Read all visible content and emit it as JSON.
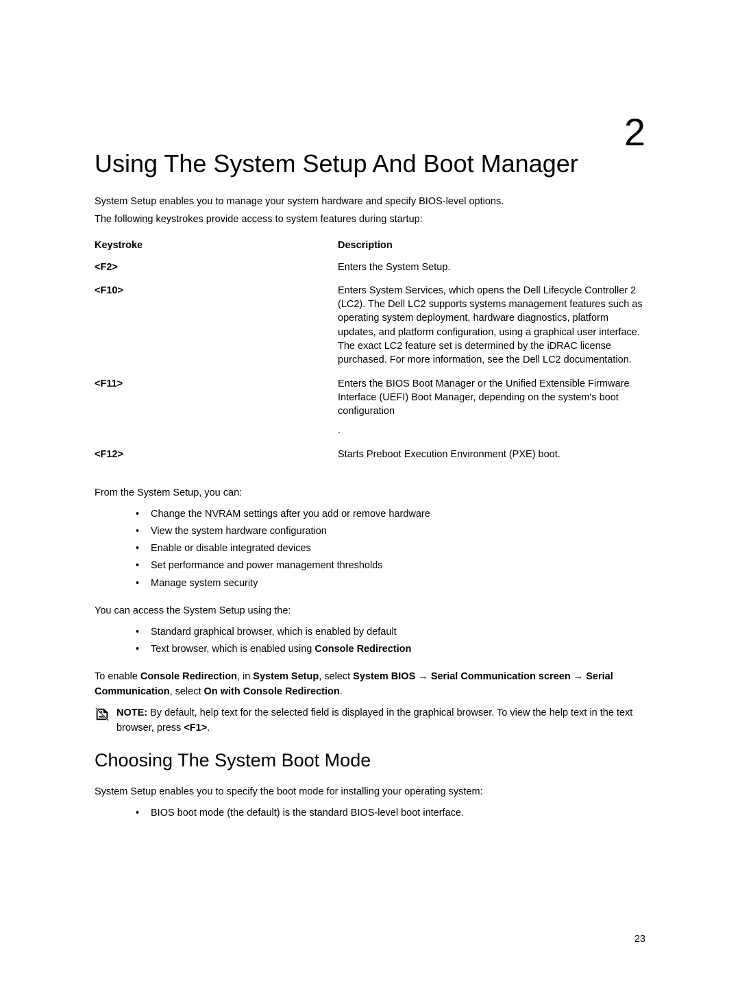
{
  "chapter": {
    "number": "2",
    "title": "Using The System Setup And Boot Manager"
  },
  "intro": {
    "line1": "System Setup enables you to manage your system hardware and specify BIOS-level options.",
    "line2": "The following keystrokes provide access to system features during startup:"
  },
  "table": {
    "header_key": "Keystroke",
    "header_desc": "Description",
    "rows": [
      {
        "key": "<F2>",
        "desc": "Enters the System Setup."
      },
      {
        "key": "<F10>",
        "desc": "Enters System Services, which opens the Dell Lifecycle Controller 2 (LC2). The Dell LC2 supports systems management features such as operating system deployment, hardware diagnostics, platform updates, and platform configuration, using a graphical user interface. The exact LC2 feature set is determined by the iDRAC license purchased. For more information, see the Dell LC2 documentation."
      },
      {
        "key": "<F11>",
        "desc": "Enters the BIOS Boot Manager or the Unified Extensible Firmware Interface (UEFI) Boot Manager, depending on the system's boot configuration",
        "trailing": "."
      },
      {
        "key": "<F12>",
        "desc": "Starts Preboot Execution Environment (PXE) boot."
      }
    ]
  },
  "setup_intro": "From the System Setup, you can:",
  "setup_list": [
    "Change the NVRAM settings after you add or remove hardware",
    "View the system hardware configuration",
    "Enable or disable integrated devices",
    "Set performance and power management thresholds",
    "Manage system security"
  ],
  "access_intro": "You can access the System Setup using the:",
  "access_list": [
    {
      "text": "Standard graphical browser, which is enabled by default"
    },
    {
      "prefix": "Text browser, which is enabled using ",
      "bold": "Console Redirection"
    }
  ],
  "enable_para": {
    "parts": [
      {
        "t": "To enable "
      },
      {
        "t": "Console Redirection",
        "b": true
      },
      {
        "t": ", in "
      },
      {
        "t": "System Setup",
        "b": true
      },
      {
        "t": ", select "
      },
      {
        "t": "System BIOS",
        "b": true
      },
      {
        "t": " → "
      },
      {
        "t": "Serial Communication screen",
        "b": true
      },
      {
        "t": " → "
      },
      {
        "t": "Serial Communication",
        "b": true
      },
      {
        "t": ", select "
      },
      {
        "t": "On with Console Redirection",
        "b": true
      },
      {
        "t": "."
      }
    ]
  },
  "note": {
    "label": "NOTE:",
    "text_parts": [
      {
        "t": " By default, help text for the selected field is displayed in the graphical browser. To view the help text in the text browser, press "
      },
      {
        "t": "<F1>",
        "b": true
      },
      {
        "t": "."
      }
    ]
  },
  "section": {
    "heading": "Choosing The System Boot Mode",
    "intro": "System Setup enables you to specify the boot mode for installing your operating system:",
    "list": [
      "BIOS boot mode (the default) is the standard BIOS-level boot interface."
    ]
  },
  "page_number": "23"
}
